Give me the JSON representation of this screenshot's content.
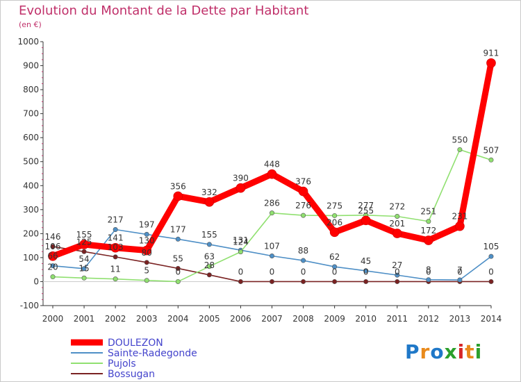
{
  "title": "Evolution du Montant de la Dette par Habitant",
  "unit": "(en €)",
  "logo": {
    "text": "Proxiti",
    "letter_colors": [
      "#1f78c8",
      "#e98a1c",
      "#1f78c8",
      "#2ca02c",
      "#d62728",
      "#e98a1c",
      "#2ca02c"
    ]
  },
  "chart_data": {
    "type": "line",
    "title": "Evolution du Montant de la Dette par Habitant",
    "ylabel": "(en €)",
    "xlabel": "",
    "categories": [
      "2000",
      "2001",
      "2002",
      "2003",
      "2004",
      "2005",
      "2006",
      "2007",
      "2008",
      "2009",
      "2010",
      "2011",
      "2012",
      "2013",
      "2014"
    ],
    "ylim": [
      -100,
      1000
    ],
    "yticks": [
      -100,
      0,
      100,
      200,
      300,
      400,
      500,
      600,
      700,
      800,
      900,
      1000
    ],
    "grid": false,
    "legend_position": "bottom-left",
    "series": [
      {
        "name": "DOULEZON",
        "color": "#ff0000",
        "label_color": "#5555dd",
        "values": [
          106,
          155,
          141,
          130,
          356,
          332,
          390,
          448,
          376,
          206,
          255,
          201,
          172,
          231,
          911
        ],
        "labels": [
          "106",
          "155",
          "141",
          "130",
          "356",
          "332",
          "390",
          "448",
          "376",
          "206",
          "255",
          "201",
          "172",
          "231",
          "911"
        ]
      },
      {
        "name": "Sainte-Radegonde",
        "color": "#4e8fc6",
        "label_color": "#5555dd",
        "values": [
          66,
          54,
          217,
          197,
          177,
          155,
          131,
          107,
          88,
          62,
          45,
          27,
          8,
          7,
          105
        ],
        "labels": [
          "66",
          "54",
          "217",
          "197",
          "177",
          "155",
          "131",
          "107",
          "88",
          "62",
          "45",
          "27",
          "8",
          "7",
          "105"
        ]
      },
      {
        "name": "Pujols",
        "color": "#90e070",
        "label_color": "#5555dd",
        "values": [
          20,
          15,
          11,
          5,
          0,
          63,
          124,
          286,
          276,
          275,
          277,
          272,
          251,
          550,
          507
        ],
        "labels": [
          "20",
          "15",
          "11",
          "5",
          "0",
          "63",
          "124",
          "286",
          "276",
          "275",
          "277",
          "272",
          "251",
          "550",
          "507"
        ]
      },
      {
        "name": "Bossugan",
        "color": "#7a2222",
        "label_color": "#5555dd",
        "values": [
          146,
          125,
          103,
          80,
          55,
          28,
          0,
          0,
          0,
          0,
          0,
          0,
          0,
          0,
          0
        ],
        "labels": [
          "146",
          "125",
          "103",
          "80",
          "55",
          "28",
          "0",
          "0",
          "0",
          "0",
          "0",
          "0",
          "0",
          "0",
          "0"
        ]
      }
    ]
  }
}
